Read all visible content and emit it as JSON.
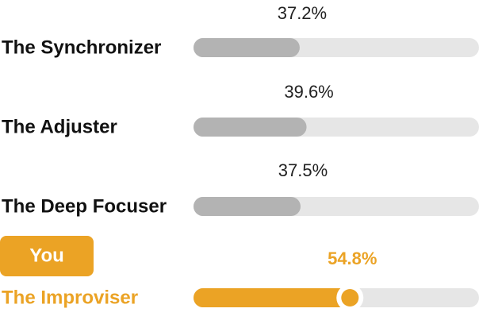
{
  "chart_data": {
    "type": "bar",
    "orientation": "horizontal",
    "categories": [
      "The Synchronizer",
      "The Adjuster",
      "The Deep Focuser",
      "The Improviser"
    ],
    "values": [
      37.2,
      39.6,
      37.5,
      54.8
    ],
    "value_labels": [
      "37.2%",
      "39.6%",
      "37.5%",
      "54.8%"
    ],
    "xlim": [
      0,
      100
    ],
    "color": "#b3b3b3",
    "track_color": "#e6e6e6",
    "highlight": {
      "index": 3,
      "badge": "You",
      "color": "#eba325"
    }
  }
}
